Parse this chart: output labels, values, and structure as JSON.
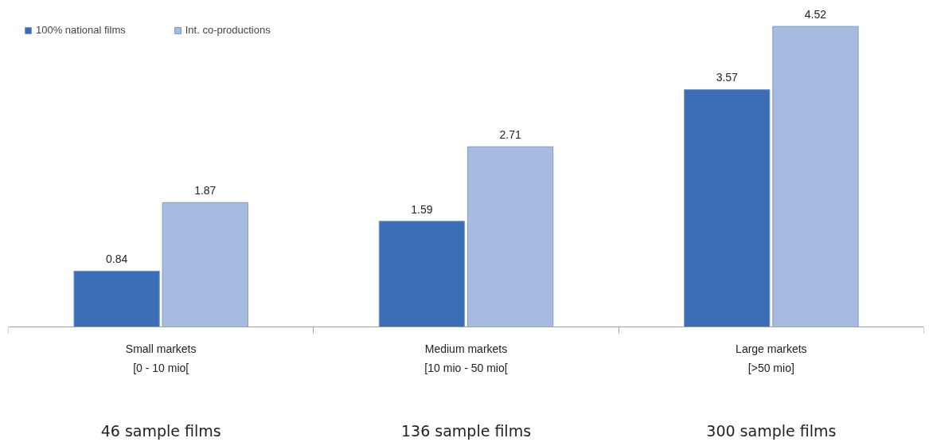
{
  "chart_data": {
    "type": "bar",
    "categories": [
      "Small markets\n[0 - 10 mio[",
      "Medium markets\n[10 mio - 50 mio[",
      "Large markets\n[>50 mio]"
    ],
    "series": [
      {
        "name": "100% national films",
        "color": "#3a6db3",
        "values": [
          0.84,
          1.59,
          3.57
        ]
      },
      {
        "name": "Int. co-productions",
        "color": "#a7bbe0",
        "values": [
          1.87,
          2.71,
          4.52
        ]
      }
    ],
    "data_labels": true,
    "legend": "top left",
    "grid": false,
    "annotations": [
      "46 sample films",
      "136 sample films",
      "300 sample films"
    ]
  }
}
